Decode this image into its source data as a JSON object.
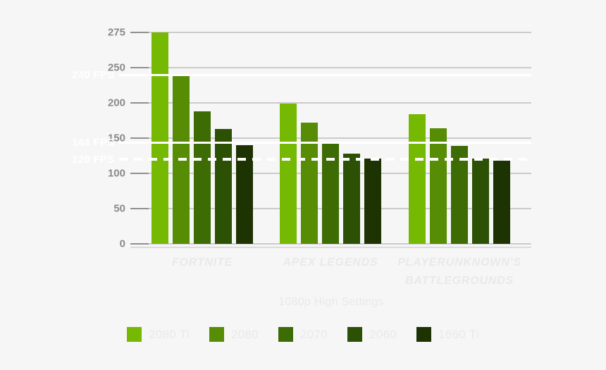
{
  "chart_data": {
    "type": "bar",
    "title": "",
    "subtitle": "1080p High Settings",
    "unit": "FPS",
    "categories": [
      "Fortnite",
      "Apex Legends",
      "PlayerUnknown's Battlegrounds"
    ],
    "category_display_labels": [
      "FORTNITE",
      "APEX LEGENDS",
      "PLAYERUNKNOWN'S BATTLEGROUNDS"
    ],
    "series": [
      {
        "name": "2080 Ti",
        "color": "#76b902",
        "values": [
          276,
          199,
          184
        ]
      },
      {
        "name": "2080",
        "color": "#578c05",
        "values": [
          238,
          172,
          164
        ]
      },
      {
        "name": "2070",
        "color": "#3d6b04",
        "values": [
          188,
          145,
          139
        ]
      },
      {
        "name": "2060",
        "color": "#2c5104",
        "values": [
          163,
          128,
          121
        ]
      },
      {
        "name": "1660 Ti",
        "color": "#1d3302",
        "values": [
          140,
          121,
          118
        ]
      }
    ],
    "ylabel": "",
    "xlabel": "",
    "y_ticks": [
      0,
      50,
      100,
      150,
      200,
      250,
      275
    ],
    "ylim": [
      0,
      275
    ],
    "axis_note": "ticks evenly spaced; top segment 250-275 spans one full tick step",
    "grid": true,
    "gridline_color": "#cbcbcb",
    "tick_label_color": "#8a8a8a",
    "faint_text_color": "#e9e9e9",
    "background_color": "#f5f6f5",
    "reference_lines": [
      {
        "label": "240 FPS",
        "value": 240,
        "style": "solid",
        "color": "#ffffff"
      },
      {
        "label": "144 FPS",
        "value": 144,
        "style": "solid",
        "color": "#ffffff"
      },
      {
        "label": "120 FPS",
        "value": 120,
        "style": "dashed",
        "color": "#ffffff"
      }
    ],
    "legend": {
      "position": "bottom",
      "entries": [
        "2080 Ti",
        "2080",
        "2070",
        "2060",
        "1660 Ti"
      ]
    }
  }
}
